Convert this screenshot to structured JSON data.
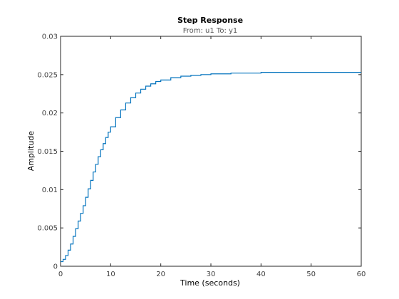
{
  "chart_data": {
    "type": "line",
    "title": "Step Response",
    "subtitle": "From: u1  To: y1",
    "xlabel": "Time (seconds)",
    "ylabel": "Amplitude",
    "xlim": [
      0,
      60
    ],
    "ylim": [
      0,
      0.03
    ],
    "x_ticks": [
      0,
      10,
      20,
      30,
      40,
      50,
      60
    ],
    "y_ticks": [
      0,
      0.005,
      0.01,
      0.015,
      0.02,
      0.025,
      0.03
    ],
    "x_tick_labels": [
      "0",
      "10",
      "20",
      "30",
      "40",
      "50",
      "60"
    ],
    "y_tick_labels": [
      "0",
      "0.005",
      "0.01",
      "0.015",
      "0.02",
      "0.025",
      "0.03"
    ],
    "grid": false,
    "line_color": "#0072bd",
    "series": [
      {
        "style": "stairs",
        "x": [
          0,
          0.5,
          1,
          1.5,
          2,
          2.5,
          3,
          3.5,
          4,
          4.5,
          5,
          5.5,
          6,
          6.5,
          7,
          7.5,
          8,
          8.5,
          9,
          9.5,
          10,
          11,
          12,
          13,
          14,
          15,
          16,
          17,
          18,
          19,
          20,
          22,
          24,
          26,
          28,
          30,
          32,
          34,
          36,
          38,
          40,
          45,
          50,
          55,
          60
        ],
        "values": [
          0.0006,
          0.0009,
          0.0014,
          0.0021,
          0.0029,
          0.0039,
          0.0049,
          0.0059,
          0.0069,
          0.0079,
          0.009,
          0.0101,
          0.0112,
          0.0123,
          0.0133,
          0.0143,
          0.0152,
          0.016,
          0.0168,
          0.0175,
          0.0182,
          0.0194,
          0.0204,
          0.0213,
          0.022,
          0.0226,
          0.0231,
          0.0235,
          0.0238,
          0.0241,
          0.0243,
          0.0246,
          0.0248,
          0.0249,
          0.025,
          0.0251,
          0.0251,
          0.0252,
          0.0252,
          0.0252,
          0.0253,
          0.0253,
          0.0253,
          0.0253,
          0.0253
        ]
      }
    ]
  }
}
